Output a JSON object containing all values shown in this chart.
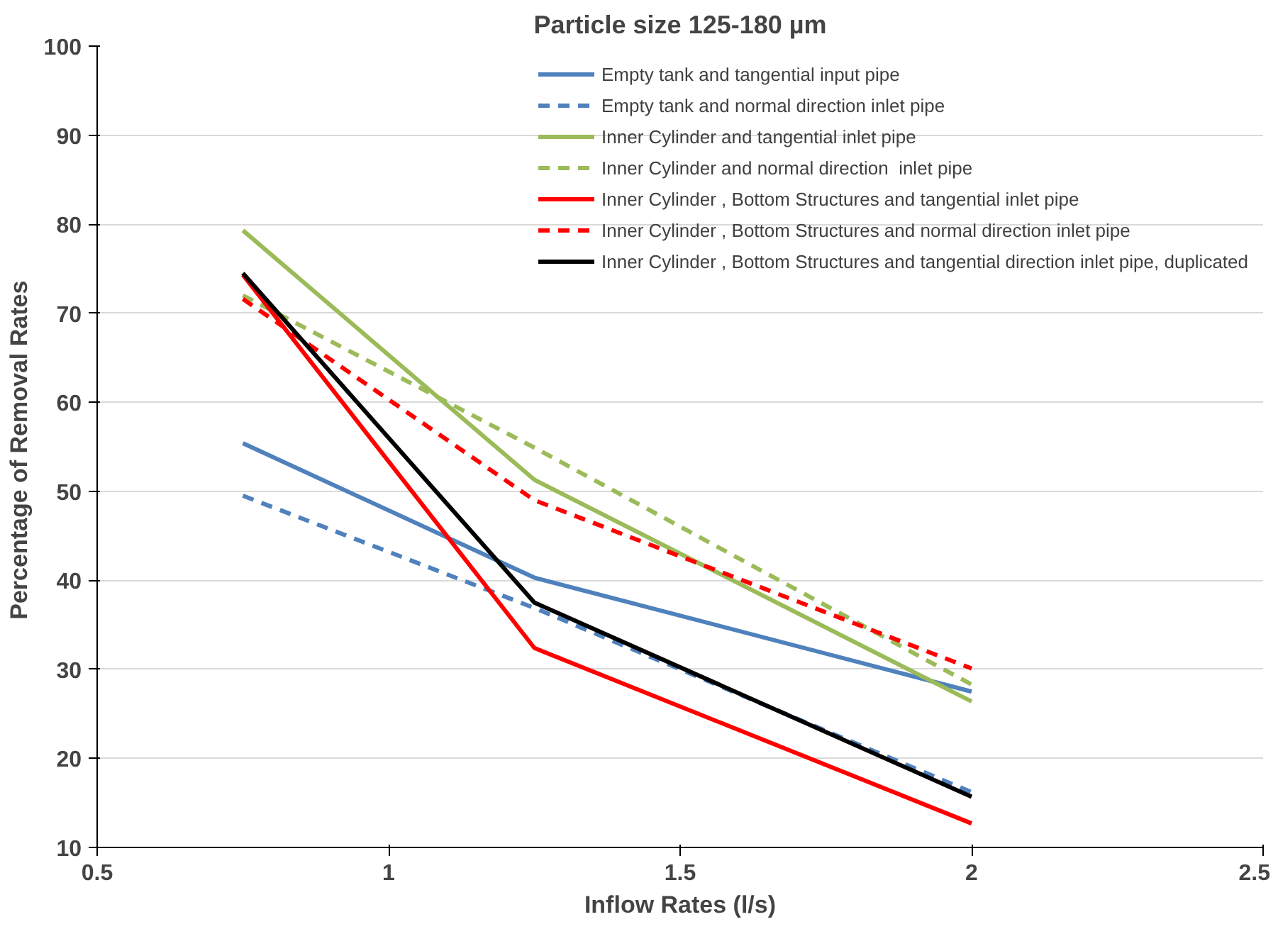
{
  "chart_data": {
    "type": "line",
    "title": "Particle size 125-180 µm",
    "xlabel": "Inflow Rates (l/s)",
    "ylabel": "Percentage  of Removal Rates",
    "x": [
      0.75,
      1.25,
      2
    ],
    "xlim": [
      0.5,
      2.5
    ],
    "xticks": [
      0.5,
      1,
      1.5,
      2,
      2.5
    ],
    "ylim": [
      10,
      100
    ],
    "yticks": [
      10,
      20,
      30,
      40,
      50,
      60,
      70,
      80,
      90,
      100
    ],
    "grid": "y",
    "legend": "top right",
    "marker": "none",
    "series": [
      {
        "name": "Empty tank and tangential input pipe",
        "color": "#4f81bd",
        "line_style": "solid",
        "values": [
          55.4,
          40.3,
          27.5
        ]
      },
      {
        "name": "Empty tank and normal direction inlet pipe",
        "color": "#4f81bd",
        "line_style": "dashed",
        "values": [
          49.5,
          36.9,
          16.2
        ]
      },
      {
        "name": "Inner Cylinder and tangential inlet pipe",
        "color": "#9bbb59",
        "line_style": "solid",
        "values": [
          79.3,
          51.3,
          26.4
        ]
      },
      {
        "name": "Inner Cylinder and normal direction  inlet pipe",
        "color": "#9bbb59",
        "line_style": "dashed",
        "values": [
          72,
          54.9,
          28.3
        ]
      },
      {
        "name": "Inner Cylinder , Bottom Structures and tangential inlet pipe",
        "color": "#ff0000",
        "line_style": "solid",
        "values": [
          74.3,
          32.4,
          12.7
        ]
      },
      {
        "name": "Inner Cylinder , Bottom Structures and normal direction inlet pipe",
        "color": "#ff0000",
        "line_style": "dashed",
        "values": [
          71.6,
          49,
          30.1
        ]
      },
      {
        "name": "Inner Cylinder , Bottom Structures and tangential direction inlet pipe, duplicated",
        "color": "#000000",
        "line_style": "solid",
        "values": [
          74.5,
          37.5,
          15.7
        ]
      }
    ]
  }
}
